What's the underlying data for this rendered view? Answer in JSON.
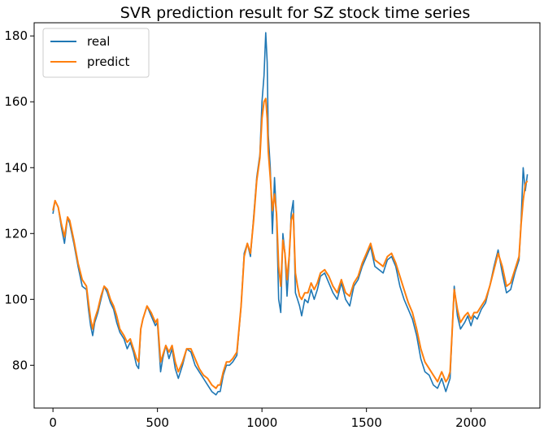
{
  "chart_data": {
    "type": "line",
    "title": "SVR prediction result for SZ stock time series",
    "xlabel": "",
    "ylabel": "",
    "xlim": [
      -90,
      2330
    ],
    "ylim": [
      67,
      184
    ],
    "xticks": [
      0,
      500,
      1000,
      1500,
      2000
    ],
    "yticks": [
      80,
      100,
      120,
      140,
      160,
      180
    ],
    "legend_position": "upper-left",
    "grid": false,
    "series": [
      {
        "name": "real",
        "color": "#1f77b4",
        "x": [
          0,
          10,
          25,
          40,
          55,
          70,
          80,
          100,
          120,
          140,
          160,
          170,
          180,
          190,
          200,
          215,
          230,
          245,
          260,
          275,
          290,
          305,
          320,
          340,
          355,
          370,
          385,
          400,
          410,
          420,
          430,
          450,
          470,
          490,
          500,
          515,
          525,
          540,
          555,
          570,
          585,
          600,
          620,
          640,
          660,
          680,
          700,
          720,
          740,
          760,
          780,
          790,
          800,
          815,
          830,
          845,
          860,
          880,
          900,
          915,
          930,
          945,
          960,
          975,
          990,
          1000,
          1010,
          1018,
          1025,
          1030,
          1040,
          1050,
          1060,
          1070,
          1080,
          1090,
          1100,
          1110,
          1120,
          1130,
          1140,
          1150,
          1160,
          1170,
          1180,
          1190,
          1205,
          1220,
          1235,
          1250,
          1265,
          1280,
          1300,
          1320,
          1340,
          1360,
          1380,
          1400,
          1420,
          1440,
          1460,
          1480,
          1500,
          1520,
          1540,
          1560,
          1580,
          1600,
          1620,
          1640,
          1660,
          1680,
          1700,
          1720,
          1740,
          1760,
          1780,
          1800,
          1820,
          1840,
          1860,
          1880,
          1890,
          1900,
          1910,
          1920,
          1935,
          1950,
          1960,
          1970,
          1985,
          2000,
          2015,
          2030,
          2050,
          2070,
          2090,
          2110,
          2130,
          2150,
          2170,
          2190,
          2210,
          2230,
          2240,
          2250,
          2260,
          2270
        ],
        "y": [
          126,
          130,
          128,
          122,
          117,
          125,
          123,
          117,
          110,
          104,
          103,
          97,
          92,
          89,
          93,
          96,
          100,
          104,
          102,
          99,
          97,
          93,
          90,
          88,
          85,
          87,
          84,
          80,
          79,
          91,
          94,
          98,
          95,
          92,
          93,
          78,
          82,
          86,
          82,
          85,
          79,
          76,
          80,
          85,
          84,
          80,
          78,
          76,
          74,
          72,
          71,
          72,
          72,
          77,
          80,
          80,
          81,
          83,
          98,
          114,
          117,
          113,
          125,
          137,
          144,
          160,
          168,
          181,
          172,
          150,
          140,
          120,
          137,
          125,
          100,
          96,
          120,
          114,
          101,
          112,
          126,
          130,
          102,
          100,
          98,
          95,
          100,
          99,
          103,
          100,
          103,
          107,
          108,
          105,
          102,
          100,
          105,
          100,
          98,
          104,
          106,
          110,
          113,
          116,
          110,
          109,
          108,
          112,
          113,
          110,
          104,
          100,
          97,
          94,
          89,
          82,
          78,
          77,
          74,
          73,
          76,
          72,
          74,
          76,
          90,
          104,
          95,
          91,
          92,
          93,
          95,
          92,
          95,
          94,
          97,
          99,
          104,
          110,
          115,
          108,
          102,
          103,
          108,
          112,
          124,
          140,
          133,
          138
        ]
      },
      {
        "name": "predict",
        "color": "#ff7f0e",
        "x": [
          0,
          10,
          25,
          40,
          55,
          70,
          80,
          100,
          120,
          140,
          160,
          170,
          180,
          190,
          200,
          215,
          230,
          245,
          260,
          275,
          290,
          305,
          320,
          340,
          355,
          370,
          385,
          400,
          410,
          420,
          430,
          450,
          470,
          490,
          500,
          515,
          525,
          540,
          555,
          570,
          585,
          600,
          620,
          640,
          660,
          680,
          700,
          720,
          740,
          760,
          780,
          790,
          800,
          815,
          830,
          845,
          860,
          880,
          900,
          915,
          930,
          945,
          960,
          975,
          990,
          1000,
          1010,
          1018,
          1025,
          1030,
          1040,
          1050,
          1060,
          1070,
          1080,
          1090,
          1100,
          1110,
          1120,
          1130,
          1140,
          1150,
          1160,
          1170,
          1180,
          1190,
          1205,
          1220,
          1235,
          1250,
          1265,
          1280,
          1300,
          1320,
          1340,
          1360,
          1380,
          1400,
          1420,
          1440,
          1460,
          1480,
          1500,
          1520,
          1540,
          1560,
          1580,
          1600,
          1620,
          1640,
          1660,
          1680,
          1700,
          1720,
          1740,
          1760,
          1780,
          1800,
          1820,
          1840,
          1860,
          1880,
          1890,
          1900,
          1910,
          1920,
          1935,
          1950,
          1960,
          1970,
          1985,
          2000,
          2015,
          2030,
          2050,
          2070,
          2090,
          2110,
          2130,
          2150,
          2170,
          2190,
          2210,
          2230,
          2240,
          2250,
          2260,
          2270
        ],
        "y": [
          127,
          130,
          128,
          123,
          119,
          125,
          124,
          118,
          111,
          106,
          104,
          99,
          94,
          91,
          94,
          97,
          101,
          104,
          103,
          100,
          98,
          95,
          91,
          89,
          87,
          88,
          85,
          82,
          81,
          91,
          94,
          98,
          96,
          93,
          94,
          81,
          83,
          86,
          84,
          86,
          81,
          78,
          81,
          85,
          85,
          82,
          79,
          77,
          76,
          74,
          73,
          74,
          74,
          78,
          81,
          81,
          82,
          84,
          98,
          113,
          117,
          114,
          124,
          136,
          143,
          155,
          160,
          161,
          155,
          145,
          137,
          127,
          132,
          126,
          110,
          104,
          118,
          114,
          106,
          113,
          124,
          126,
          108,
          104,
          101,
          100,
          102,
          102,
          105,
          103,
          105,
          108,
          109,
          107,
          104,
          102,
          106,
          102,
          101,
          105,
          107,
          111,
          114,
          117,
          112,
          111,
          110,
          113,
          114,
          111,
          107,
          103,
          99,
          96,
          91,
          85,
          81,
          79,
          77,
          75,
          78,
          75,
          76,
          78,
          90,
          103,
          97,
          93,
          94,
          95,
          96,
          94,
          96,
          96,
          98,
          100,
          104,
          109,
          114,
          110,
          104,
          105,
          109,
          113,
          123,
          130,
          135,
          136
        ]
      }
    ]
  }
}
